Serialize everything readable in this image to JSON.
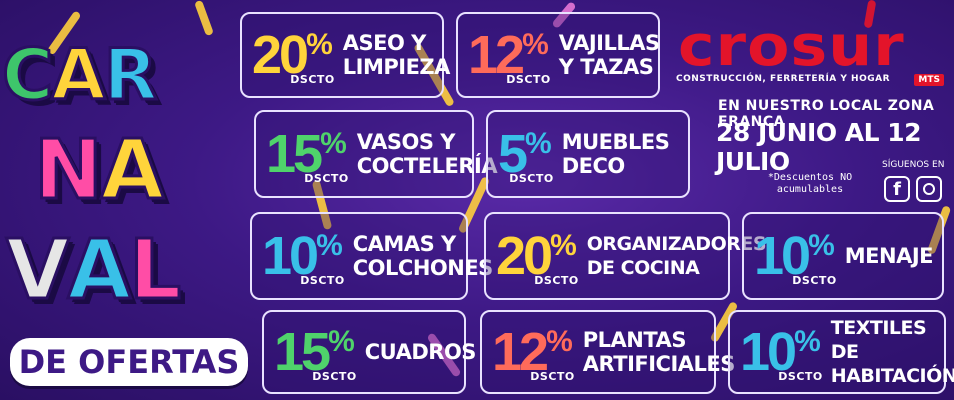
{
  "title": {
    "rows": [
      {
        "letters": [
          "C",
          "A",
          "R"
        ],
        "colors": [
          "#3ec56b",
          "#ffd43b",
          "#39c0e8"
        ]
      },
      {
        "letters": [
          "N",
          "A"
        ],
        "colors": [
          "#ff4da6",
          "#ffd43b"
        ]
      },
      {
        "letters": [
          "V",
          "A",
          "L"
        ],
        "colors": [
          "#e6e6e6",
          "#39c0e8",
          "#ff4da6"
        ]
      }
    ],
    "subtitle": "DE OFERTAS"
  },
  "brand": {
    "name": "crosur",
    "tag": "MTS",
    "tagline": "CONSTRUCCIÓN, FERRETERÍA Y HOGAR"
  },
  "promo": {
    "location": "EN NUESTRO LOCAL ZONA FRANCA",
    "dates": "28 JUNIO AL 12 JULIO",
    "note": "*Descuentos NO\nacumulables",
    "follow": "SÍGUENOS EN"
  },
  "social": {
    "facebook_glyph": "f",
    "icons": [
      "facebook-icon",
      "instagram-icon"
    ]
  },
  "offers": [
    {
      "pct": "20",
      "sign": "%",
      "dscto": "DSCTO",
      "label": "ASEO Y\nLIMPIEZA",
      "color": "#ffd43b"
    },
    {
      "pct": "12",
      "sign": "%",
      "dscto": "DSCTO",
      "label": "VAJILLAS\nY TAZAS",
      "color": "#ff6b5a"
    },
    {
      "pct": "15",
      "sign": "%",
      "dscto": "DSCTO",
      "label": "VASOS Y\nCOCTELERÍA",
      "color": "#4fd36b"
    },
    {
      "pct": "5",
      "sign": "%",
      "dscto": "DSCTO",
      "label": "MUEBLES\nDECO",
      "color": "#39c0e8"
    },
    {
      "pct": "10",
      "sign": "%",
      "dscto": "DSCTO",
      "label": "CAMAS Y\nCOLCHONES",
      "color": "#39c0e8"
    },
    {
      "pct": "20",
      "sign": "%",
      "dscto": "DSCTO",
      "label": "ORGANIZADORES\nDE COCINA",
      "color": "#ffd43b"
    },
    {
      "pct": "10",
      "sign": "%",
      "dscto": "DSCTO",
      "label": "MENAJE",
      "color": "#39c0e8"
    },
    {
      "pct": "15",
      "sign": "%",
      "dscto": "DSCTO",
      "label": "CUADROS",
      "color": "#4fd36b"
    },
    {
      "pct": "12",
      "sign": "%",
      "dscto": "DSCTO",
      "label": "PLANTAS\nARTIFICIALES",
      "color": "#ff6b5a"
    },
    {
      "pct": "10",
      "sign": "%",
      "dscto": "DSCTO",
      "label": "TEXTILES DE\nHABITACIÓN",
      "color": "#39c0e8"
    }
  ]
}
